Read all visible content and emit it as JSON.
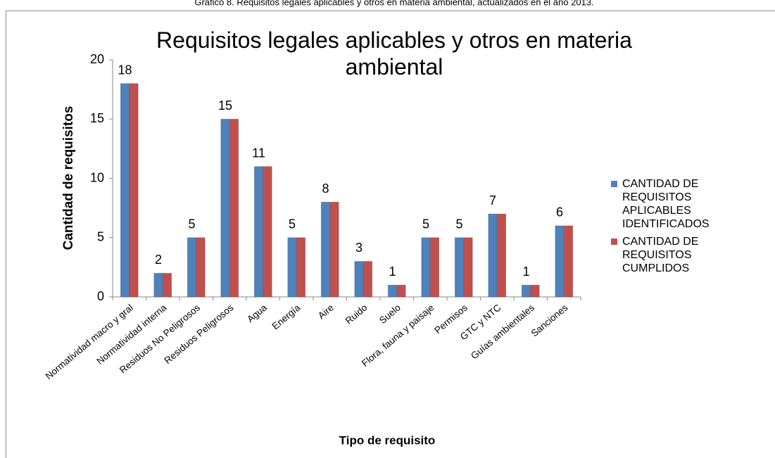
{
  "caption": "Gráfico 8. Requisitos legales aplicables y otros en materia ambiental, actualizados en el año 2013.",
  "chart_data": {
    "type": "bar",
    "title": "Requisitos legales aplicables y otros en materia ambiental",
    "x_label": "Tipo de requisito",
    "y_label": "Cantidad de requisitos",
    "categories": [
      "Normatividad macro y gral",
      "Normatividad interna",
      "Residuos No Peligrosos",
      "Residuos Peligrosos",
      "Agua",
      "Energía",
      "Aire",
      "Ruido",
      "Suelo",
      "Flora, fauna y paisaje",
      "Permisos",
      "GTC y NTC",
      "Guías ambientales",
      "Sanciones"
    ],
    "series": [
      {
        "name": "CANTIDAD DE REQUISITOS APLICABLES IDENTIFICADOS",
        "color": "#4f81bd",
        "values": [
          18,
          2,
          5,
          15,
          11,
          5,
          8,
          3,
          1,
          5,
          5,
          7,
          1,
          6
        ]
      },
      {
        "name": "CANTIDAD DE REQUISITOS CUMPLIDOS",
        "color": "#c0504d",
        "values": [
          18,
          2,
          5,
          15,
          11,
          5,
          8,
          3,
          1,
          5,
          5,
          7,
          1,
          6
        ]
      }
    ],
    "ylim": [
      0,
      20
    ],
    "yticks": [
      0,
      5,
      10,
      15,
      20
    ],
    "grid": false,
    "legend": "right"
  }
}
